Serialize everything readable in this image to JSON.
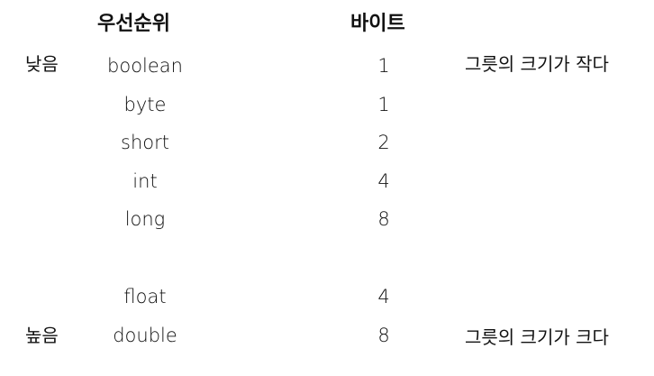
{
  "headers": {
    "priority": "우선순위",
    "bytes": "바이트"
  },
  "side_labels": {
    "low": "낮음",
    "high": "높음"
  },
  "notes": {
    "small": "그릇의 크기가 작다",
    "big": "그릇의 크기가 크다"
  },
  "rows": [
    {
      "type": "boolean",
      "bytes": "1"
    },
    {
      "type": "byte",
      "bytes": "1"
    },
    {
      "type": "short",
      "bytes": "2"
    },
    {
      "type": "int",
      "bytes": "4"
    },
    {
      "type": "long",
      "bytes": "8"
    },
    {
      "type": "float",
      "bytes": "4"
    },
    {
      "type": "double",
      "bytes": "8"
    }
  ]
}
